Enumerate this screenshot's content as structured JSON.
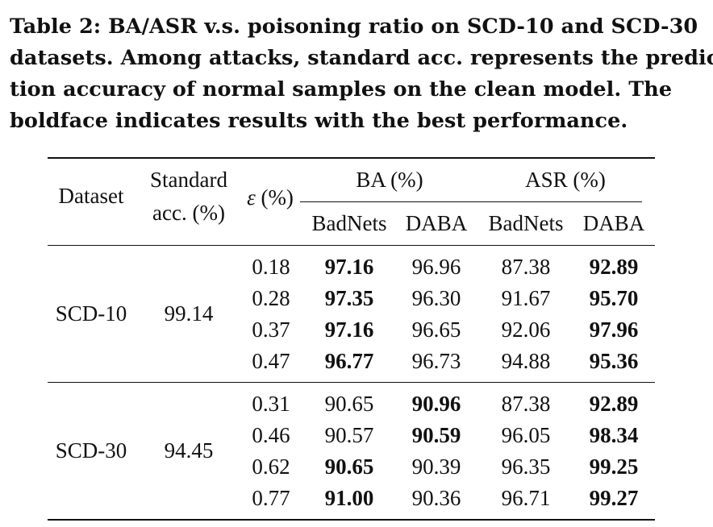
{
  "caption": {
    "lines": [
      "Table 2: BA/ASR v.s. poisoning ratio on SCD-10 and SCD-30",
      "datasets. Among attacks, standard acc. represents the predic-",
      "tion accuracy of normal samples on the clean model. The",
      "boldface indicates results with the best performance."
    ]
  },
  "table": {
    "headers": {
      "dataset": "Dataset",
      "standard_line1": "Standard",
      "standard_line2": "acc. (%)",
      "eps_symbol": "ε",
      "eps_unit": " (%)",
      "ba": "BA (%)",
      "asr": "ASR (%)",
      "sub": [
        "BadNets",
        "DABA",
        "BadNets",
        "DABA"
      ]
    },
    "groups": [
      {
        "dataset": "SCD-10",
        "standard_acc": "99.14",
        "rows": [
          {
            "eps": "0.18",
            "ba_badnets": "97.16",
            "ba_daba": "96.96",
            "asr_badnets": "87.38",
            "asr_daba": "92.89",
            "bold": [
              true,
              false,
              false,
              true
            ]
          },
          {
            "eps": "0.28",
            "ba_badnets": "97.35",
            "ba_daba": "96.30",
            "asr_badnets": "91.67",
            "asr_daba": "95.70",
            "bold": [
              true,
              false,
              false,
              true
            ]
          },
          {
            "eps": "0.37",
            "ba_badnets": "97.16",
            "ba_daba": "96.65",
            "asr_badnets": "92.06",
            "asr_daba": "97.96",
            "bold": [
              true,
              false,
              false,
              true
            ]
          },
          {
            "eps": "0.47",
            "ba_badnets": "96.77",
            "ba_daba": "96.73",
            "asr_badnets": "94.88",
            "asr_daba": "95.36",
            "bold": [
              true,
              false,
              false,
              true
            ]
          }
        ]
      },
      {
        "dataset": "SCD-30",
        "standard_acc": "94.45",
        "rows": [
          {
            "eps": "0.31",
            "ba_badnets": "90.65",
            "ba_daba": "90.96",
            "asr_badnets": "87.38",
            "asr_daba": "92.89",
            "bold": [
              false,
              true,
              false,
              true
            ]
          },
          {
            "eps": "0.46",
            "ba_badnets": "90.57",
            "ba_daba": "90.59",
            "asr_badnets": "96.05",
            "asr_daba": "98.34",
            "bold": [
              false,
              true,
              false,
              true
            ]
          },
          {
            "eps": "0.62",
            "ba_badnets": "90.65",
            "ba_daba": "90.39",
            "asr_badnets": "96.35",
            "asr_daba": "99.25",
            "bold": [
              true,
              false,
              false,
              true
            ]
          },
          {
            "eps": "0.77",
            "ba_badnets": "91.00",
            "ba_daba": "90.36",
            "asr_badnets": "96.71",
            "asr_daba": "99.27",
            "bold": [
              true,
              false,
              false,
              true
            ]
          }
        ]
      }
    ]
  }
}
